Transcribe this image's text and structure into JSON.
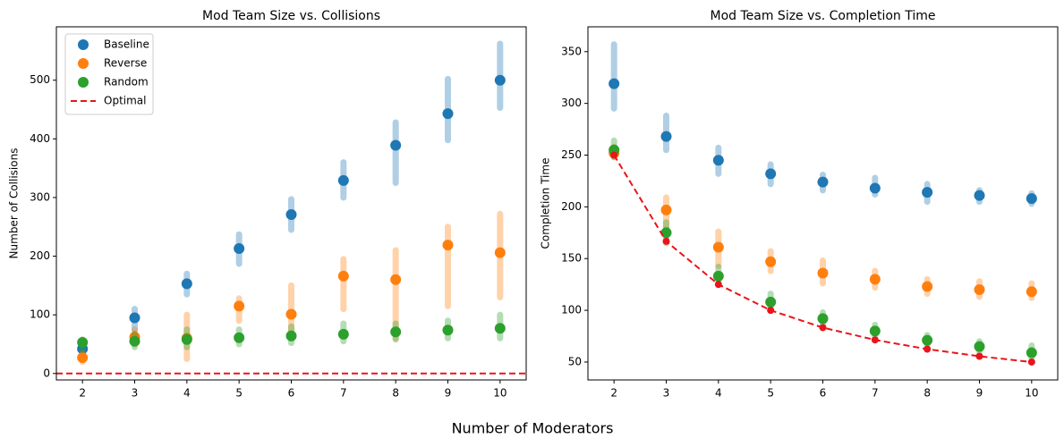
{
  "supxlabel": "Number of Moderators",
  "chart_data": [
    {
      "type": "strip",
      "title": "Mod Team Size vs. Collisions",
      "ylabel": "Number of Collisions",
      "categories": [
        "2",
        "3",
        "4",
        "5",
        "6",
        "7",
        "8",
        "9",
        "10"
      ],
      "ylim": [
        -11,
        591
      ],
      "yticks": [
        0,
        100,
        200,
        300,
        400,
        500
      ],
      "legend": "upper left",
      "series": [
        {
          "name": "Baseline",
          "color": "#1f77b4",
          "values": [
            42,
            95,
            153,
            213,
            271,
            329,
            389,
            443,
            500
          ],
          "min": [
            35,
            75,
            135,
            187,
            245,
            300,
            325,
            398,
            453
          ],
          "max": [
            50,
            110,
            170,
            237,
            297,
            360,
            428,
            502,
            562
          ]
        },
        {
          "name": "Reverse",
          "color": "#ff7f0e",
          "values": [
            27,
            62,
            60,
            115,
            101,
            166,
            160,
            219,
            206
          ],
          "min": [
            20,
            50,
            25,
            90,
            60,
            110,
            60,
            115,
            130
          ],
          "max": [
            35,
            75,
            100,
            128,
            150,
            195,
            210,
            250,
            272
          ]
        },
        {
          "name": "Random",
          "color": "#2ca02c",
          "values": [
            53,
            55,
            58,
            61,
            64,
            67,
            71,
            74,
            77
          ],
          "min": [
            40,
            45,
            45,
            50,
            52,
            55,
            58,
            60,
            60
          ],
          "max": [
            58,
            68,
            75,
            75,
            80,
            85,
            85,
            90,
            100
          ]
        },
        {
          "name": "Optimal",
          "color": "#e8151b",
          "value": 0
        }
      ]
    },
    {
      "type": "strip",
      "title": "Mod Team Size vs. Completion Time",
      "ylabel": "Completion Time",
      "categories": [
        "2",
        "3",
        "4",
        "5",
        "6",
        "7",
        "8",
        "9",
        "10"
      ],
      "ylim": [
        32.7,
        374
      ],
      "yticks": [
        50,
        100,
        150,
        200,
        250,
        300,
        350
      ],
      "series": [
        {
          "name": "Baseline",
          "color": "#1f77b4",
          "values": [
            319,
            268,
            245,
            232,
            224,
            218,
            214,
            211,
            208
          ],
          "min": [
            295,
            255,
            232,
            222,
            216,
            212,
            205,
            205,
            203
          ],
          "max": [
            357,
            288,
            257,
            241,
            231,
            228,
            222,
            216,
            213
          ]
        },
        {
          "name": "Reverse",
          "color": "#ff7f0e",
          "values": [
            252,
            197,
            161,
            147,
            136,
            130,
            123,
            120,
            118
          ],
          "min": [
            248,
            180,
            143,
            138,
            126,
            122,
            116,
            113,
            112
          ],
          "max": [
            258,
            209,
            176,
            157,
            148,
            138,
            130,
            128,
            126
          ]
        },
        {
          "name": "Random",
          "color": "#2ca02c",
          "values": [
            255,
            175,
            133,
            108,
            92,
            80,
            71,
            65,
            59
          ],
          "min": [
            248,
            165,
            125,
            100,
            85,
            74,
            66,
            60,
            54
          ],
          "max": [
            264,
            185,
            142,
            116,
            98,
            86,
            76,
            70,
            66
          ]
        },
        {
          "name": "Optimal",
          "color": "#e8151b",
          "values": [
            250,
            166.7,
            125,
            100,
            83.3,
            71.4,
            62.5,
            55.6,
            50
          ]
        }
      ]
    }
  ]
}
